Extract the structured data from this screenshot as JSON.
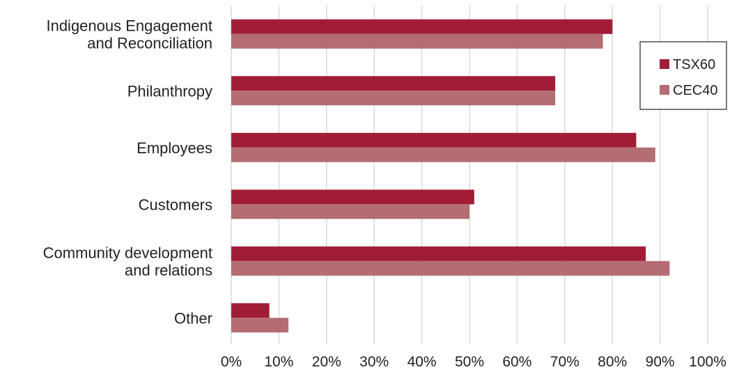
{
  "chart_data": {
    "type": "bar",
    "orientation": "horizontal",
    "categories": [
      [
        "Indigenous Engagement",
        "and Reconciliation"
      ],
      [
        "Philanthropy"
      ],
      [
        "Employees"
      ],
      [
        "Customers"
      ],
      [
        "Community development",
        "and relations"
      ],
      [
        "Other"
      ]
    ],
    "series": [
      {
        "name": "TSX60",
        "color": "#a11d36",
        "values": [
          80,
          68,
          85,
          51,
          87,
          8
        ]
      },
      {
        "name": "CEC40",
        "color": "#b36d73",
        "values": [
          78,
          68,
          89,
          50,
          92,
          12
        ]
      }
    ],
    "xlim": [
      0,
      100
    ],
    "xticks": [
      0,
      10,
      20,
      30,
      40,
      50,
      60,
      70,
      80,
      90,
      100
    ],
    "tick_format": "{v}%",
    "grid": true,
    "legend_position": "top-right"
  }
}
